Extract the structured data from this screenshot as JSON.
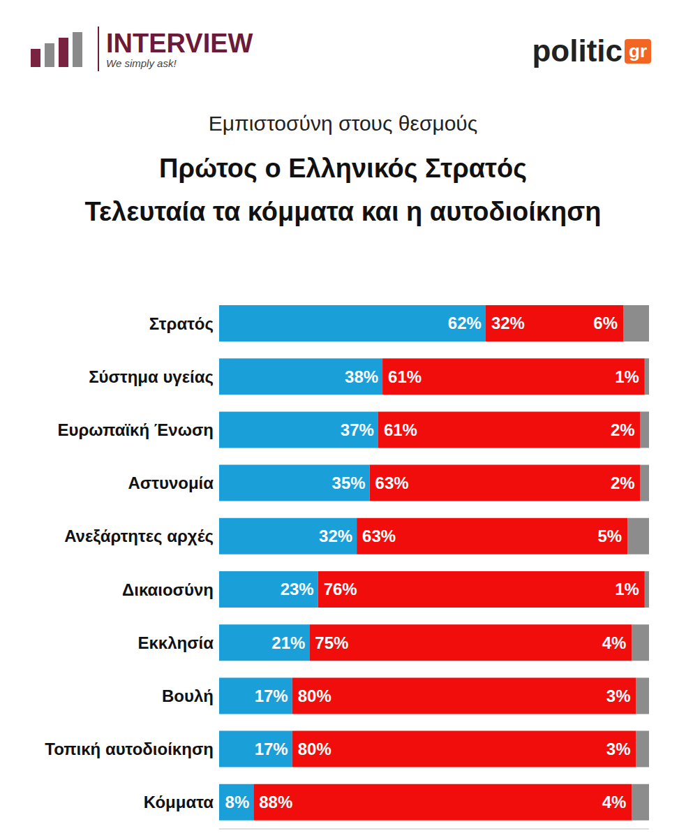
{
  "chart_data": {
    "type": "bar",
    "orientation": "horizontal",
    "stacked": true,
    "data_labels": true,
    "tick_labels": "y",
    "grid": false,
    "subtitle": "Εμπιστοσύνη στους θεσμούς",
    "title": "Πρώτος ο Ελληνικός Στρατός\nΤελευταία τα κόμματα και η αυτοδιοίκηση",
    "annotations": [
      "INTERVIEW",
      "We simply ask!",
      "politic",
      "gr"
    ],
    "categories": [
      "Στρατός",
      "Σύστημα υγείας",
      "Ευρωπαϊκή Ένωση",
      "Αστυνομία",
      "Ανεξάρτητες αρχές",
      "Δικαιοσύνη",
      "Εκκλησία",
      "Βουλή",
      "Τοπική αυτοδιοίκηση",
      "Κόμματα"
    ],
    "xlim": [
      0,
      100
    ],
    "series": [
      {
        "color": "#1a9fd9",
        "values": [
          62,
          38,
          37,
          35,
          32,
          23,
          21,
          17,
          17,
          8
        ],
        "value_labels": [
          "62%",
          "38%",
          "37%",
          "35%",
          "32%",
          "23%",
          "21%",
          "17%",
          "17%",
          "8%"
        ]
      },
      {
        "color": "#f20d0d",
        "values": [
          32,
          61,
          61,
          63,
          63,
          76,
          75,
          80,
          80,
          88
        ],
        "value_labels": [
          "32%",
          "61%",
          "61%",
          "63%",
          "63%",
          "76%",
          "75%",
          "80%",
          "80%",
          "88%"
        ]
      },
      {
        "color": "#8c8c8c",
        "values": [
          6,
          1,
          2,
          2,
          5,
          1,
          4,
          3,
          3,
          4
        ],
        "value_labels": [
          "6%",
          "1%",
          "2%",
          "2%",
          "5%",
          "1%",
          "4%",
          "3%",
          "3%",
          "4%"
        ]
      }
    ]
  }
}
